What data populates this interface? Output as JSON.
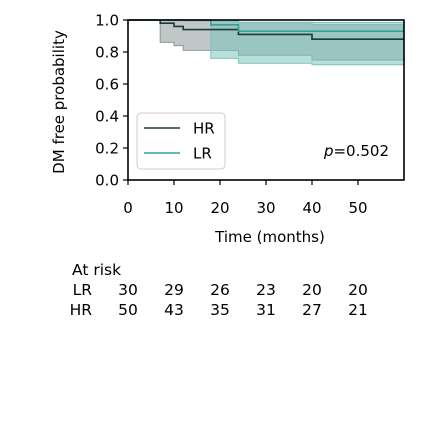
{
  "chart_data": {
    "type": "line",
    "subtype": "kaplan-meier",
    "title": "",
    "xlabel": "Time (months)",
    "ylabel": "DM free probability",
    "xlim": [
      0,
      60
    ],
    "ylim": [
      0,
      1.0
    ],
    "xticks": [
      0,
      10,
      20,
      30,
      40,
      50
    ],
    "yticks": [
      0.0,
      0.2,
      0.4,
      0.6,
      0.8,
      1.0
    ],
    "xtick_labels": [
      "0",
      "10",
      "20",
      "30",
      "40",
      "50"
    ],
    "ytick_labels": [
      "0.0",
      "0.2",
      "0.4",
      "0.6",
      "0.8",
      "1.0"
    ],
    "grid": false,
    "legend_position": "lower-left",
    "annotation": "p=0.502",
    "series": [
      {
        "name": "HR",
        "color": "#1c3a36",
        "band_color": "#8a9a97",
        "steps": [
          [
            0,
            1.0
          ],
          [
            7,
            0.98
          ],
          [
            10,
            0.96
          ],
          [
            12,
            0.94
          ],
          [
            24,
            0.91
          ],
          [
            40,
            0.88
          ],
          [
            60,
            0.88
          ]
        ],
        "ci_upper": [
          [
            0,
            1.0
          ],
          [
            7,
            1.0
          ],
          [
            10,
            1.0
          ],
          [
            12,
            0.995
          ],
          [
            24,
            0.985
          ],
          [
            40,
            0.97
          ],
          [
            60,
            0.97
          ]
        ],
        "ci_lower": [
          [
            0,
            1.0
          ],
          [
            7,
            0.86
          ],
          [
            10,
            0.84
          ],
          [
            12,
            0.81
          ],
          [
            24,
            0.78
          ],
          [
            40,
            0.75
          ],
          [
            60,
            0.75
          ]
        ]
      },
      {
        "name": "LR",
        "color": "#3a9e98",
        "band_color": "#7cc4bf",
        "steps": [
          [
            0,
            1.0
          ],
          [
            18,
            0.97
          ],
          [
            24,
            0.93
          ],
          [
            40,
            0.93
          ],
          [
            60,
            0.93
          ]
        ],
        "ci_upper": [
          [
            0,
            1.0
          ],
          [
            18,
            0.995
          ],
          [
            24,
            0.985
          ],
          [
            40,
            0.985
          ],
          [
            60,
            0.985
          ]
        ],
        "ci_lower": [
          [
            0,
            1.0
          ],
          [
            18,
            0.76
          ],
          [
            24,
            0.73
          ],
          [
            40,
            0.72
          ],
          [
            60,
            0.72
          ]
        ]
      }
    ]
  },
  "risk_table": {
    "title": "At risk",
    "times": [
      0,
      10,
      20,
      30,
      40,
      50
    ],
    "rows": [
      {
        "label": "LR",
        "values": [
          "30",
          "29",
          "26",
          "23",
          "20",
          "20"
        ]
      },
      {
        "label": "HR",
        "values": [
          "50",
          "43",
          "35",
          "31",
          "27",
          "21"
        ]
      }
    ]
  }
}
